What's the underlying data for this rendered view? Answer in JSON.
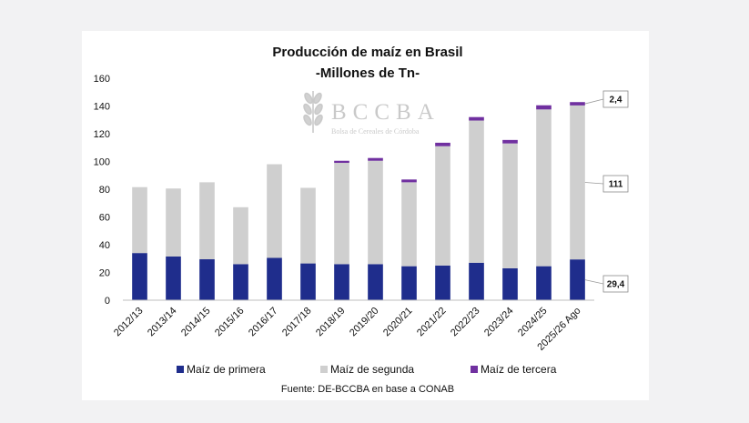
{
  "chart_data": {
    "type": "bar",
    "stacked": true,
    "title": "Producción de maíz en Brasil",
    "subtitle": "-Millones de Tn-",
    "source": "Fuente: DE-BCCBA en base a CONAB",
    "watermark": {
      "name": "BCCBA",
      "tagline": "Bolsa de Cereales de Córdoba"
    },
    "categories": [
      "2012/13",
      "2013/14",
      "2014/15",
      "2015/16",
      "2016/17",
      "2017/18",
      "2018/19",
      "2019/20",
      "2020/21",
      "2021/22",
      "2022/23",
      "2023/24",
      "2024/25",
      "2025/26 Ago"
    ],
    "series": [
      {
        "name": "Maíz de primera",
        "color": "#1f2d8c",
        "values": [
          34,
          31.5,
          29.5,
          26,
          30.5,
          26.5,
          26,
          26,
          24.5,
          25,
          27,
          23,
          24.5,
          29.4
        ]
      },
      {
        "name": "Maíz de segunda",
        "color": "#cfcfcf",
        "values": [
          47.5,
          49,
          55.5,
          41,
          67.5,
          54.5,
          73,
          74.5,
          60.5,
          86,
          102.5,
          90,
          113,
          111
        ]
      },
      {
        "name": "Maíz de tercera",
        "color": "#7030a0",
        "values": [
          0,
          0,
          0,
          0,
          0,
          0,
          1.5,
          2,
          2,
          2.5,
          2.5,
          2.5,
          3,
          2.4
        ]
      }
    ],
    "annotations": [
      {
        "category": "2025/26 Ago",
        "series": "Maíz de tercera",
        "label": "2,4"
      },
      {
        "category": "2025/26 Ago",
        "series": "Maíz de segunda",
        "label": "111"
      },
      {
        "category": "2025/26 Ago",
        "series": "Maíz de primera",
        "label": "29,4"
      }
    ],
    "ylim": [
      0,
      160
    ],
    "yticks": [
      0,
      20,
      40,
      60,
      80,
      100,
      120,
      140,
      160
    ],
    "grid": false,
    "legend": "bottom"
  }
}
